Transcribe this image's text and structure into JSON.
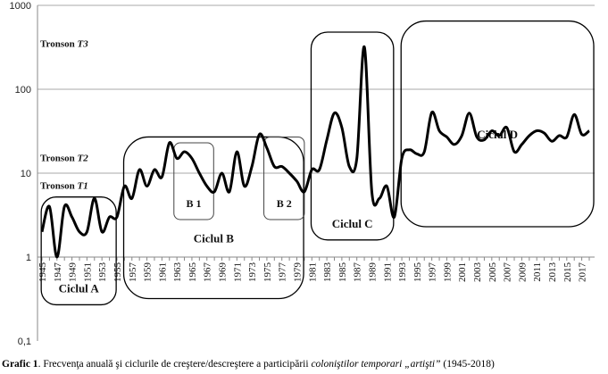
{
  "chart_data": {
    "type": "line",
    "title": "",
    "xlabel": "",
    "ylabel": "",
    "yscale": "log",
    "ylim": [
      0.1,
      1000
    ],
    "yticks": [
      "0,1",
      "1",
      "10",
      "100",
      "1000"
    ],
    "ytick_values": [
      0.1,
      1,
      10,
      100,
      1000
    ],
    "grid": true,
    "x": [
      1945,
      1946,
      1947,
      1948,
      1949,
      1950,
      1951,
      1952,
      1953,
      1954,
      1955,
      1956,
      1957,
      1958,
      1959,
      1960,
      1961,
      1962,
      1963,
      1964,
      1965,
      1966,
      1967,
      1968,
      1969,
      1970,
      1971,
      1972,
      1973,
      1974,
      1975,
      1976,
      1977,
      1978,
      1979,
      1980,
      1981,
      1982,
      1983,
      1984,
      1985,
      1986,
      1987,
      1988,
      1989,
      1990,
      1991,
      1992,
      1993,
      1994,
      1995,
      1996,
      1997,
      1998,
      1999,
      2000,
      2001,
      2002,
      2003,
      2004,
      2005,
      2006,
      2007,
      2008,
      2009,
      2010,
      2011,
      2012,
      2013,
      2014,
      2015,
      2016,
      2017,
      2018
    ],
    "values": [
      2,
      4,
      1,
      4,
      3,
      2,
      2,
      5,
      2,
      3,
      3,
      7,
      5,
      11,
      7,
      11,
      9,
      23,
      15,
      18,
      15,
      10,
      7,
      6,
      10,
      6,
      18,
      7,
      12,
      29,
      20,
      12,
      12,
      10,
      8,
      6,
      11,
      11,
      25,
      52,
      35,
      12,
      15,
      320,
      6,
      5,
      7,
      3,
      15,
      19,
      17,
      18,
      53,
      32,
      27,
      22,
      28,
      52,
      27,
      25,
      32,
      28,
      35,
      18,
      22,
      28,
      32,
      30,
      24,
      28,
      27,
      50,
      29,
      32
    ],
    "xtick_labels": [
      "1945",
      "1947",
      "1949",
      "1951",
      "1953",
      "1955",
      "1957",
      "1959",
      "1961",
      "1963",
      "1965",
      "1967",
      "1969",
      "1971",
      "1973",
      "1975",
      "1977",
      "1979",
      "1981",
      "1983",
      "1985",
      "1987",
      "1989",
      "1991",
      "1993",
      "1995",
      "1997",
      "1999",
      "2001",
      "2003",
      "2005",
      "2007",
      "2009",
      "2011",
      "2013",
      "2015",
      "2017"
    ],
    "annotations": [
      {
        "label": "Tronson ",
        "label_italic": "T3",
        "y_value": 320
      },
      {
        "label": "Tronson ",
        "label_italic": "T2",
        "y_value": 14
      },
      {
        "label": "Tronson ",
        "label_italic": "T1",
        "y_value": 6.5
      }
    ],
    "regions": [
      {
        "label": "Ciclul A",
        "x_range": [
          1944.9,
          1954.9
        ],
        "y_range": [
          0.27,
          5.2
        ],
        "style": "dark"
      },
      {
        "label": "Ciclul B",
        "x_range": [
          1955.9,
          1979.9
        ],
        "y_range": [
          0.32,
          27
        ],
        "style": "dark"
      },
      {
        "label": "Ciclul C",
        "x_range": [
          1980.9,
          1991.9
        ],
        "y_range": [
          1.6,
          480
        ],
        "style": "dark"
      },
      {
        "label": "Ciclul D",
        "x_range": [
          1992.9,
          2018.6
        ],
        "y_range": [
          2.3,
          650
        ],
        "style": "dark"
      },
      {
        "label": "B 1",
        "x_range": [
          1962.6,
          1967.9
        ],
        "y_range": [
          2.8,
          23
        ],
        "style": "light"
      },
      {
        "label": "B 2",
        "x_range": [
          1974.6,
          1980.0
        ],
        "y_range": [
          2.8,
          27
        ],
        "style": "light"
      }
    ]
  },
  "caption": {
    "label": "Grafic 1",
    "text_before": ". Frecvenţa anuală şi ciclurile de creştere/descreştere a participării ",
    "text_italic": "coloniştilor temporari „artişti”",
    "text_after": " (1945-2018)"
  }
}
